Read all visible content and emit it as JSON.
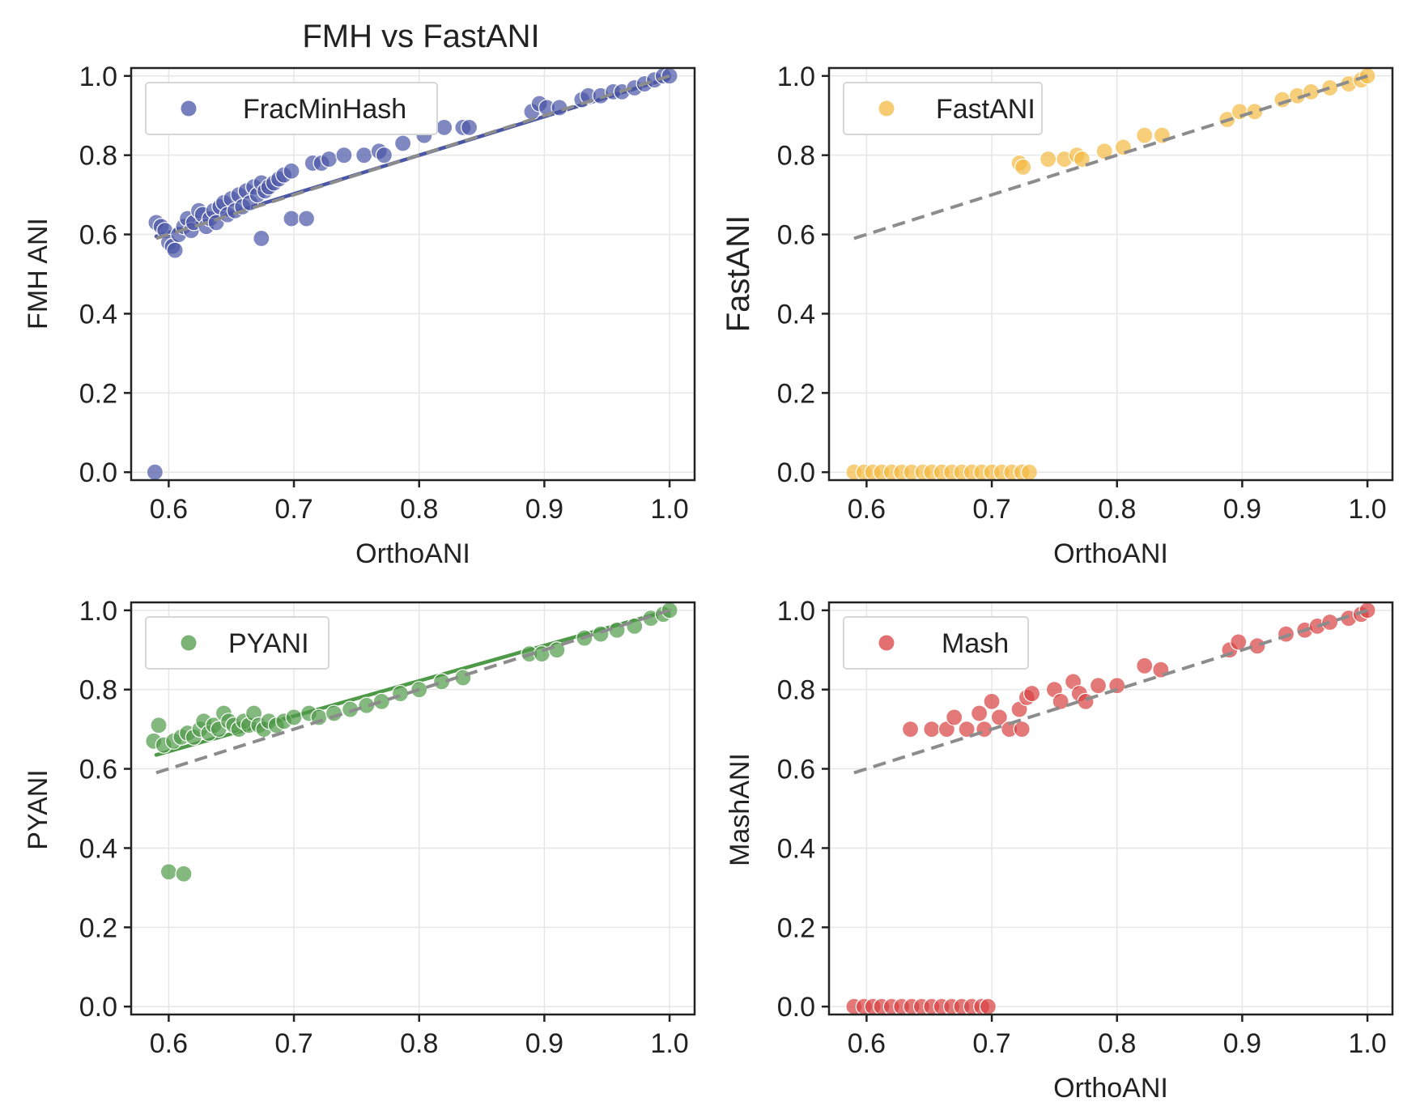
{
  "figure": {
    "title": "FMH vs FastANI",
    "colors": {
      "frac": "#4a56a6",
      "fast": "#f4b942",
      "pyani": "#4f9a48",
      "mash": "#d94040",
      "identity": "#8c8c8c",
      "grid": "#e6e6e6",
      "axes": "#222222"
    }
  },
  "chart_data": [
    {
      "type": "scatter",
      "title": "FMH vs FastANI",
      "xlabel": "OrthoANI",
      "ylabel": "FMH ANI",
      "xlim": [
        0.57,
        1.02
      ],
      "ylim": [
        -0.02,
        1.02
      ],
      "xticks": [
        "0.6",
        "0.7",
        "0.8",
        "0.9",
        "1.0"
      ],
      "yticks": [
        "0.0",
        "0.2",
        "0.4",
        "0.6",
        "0.8",
        "1.0"
      ],
      "grid": true,
      "legend": "top-left",
      "series": [
        {
          "name": "FracMinHash",
          "color": "#4a56a6",
          "points": [
            [
              0.589,
              0.0
            ],
            [
              0.59,
              0.63
            ],
            [
              0.594,
              0.62
            ],
            [
              0.597,
              0.61
            ],
            [
              0.6,
              0.58
            ],
            [
              0.603,
              0.57
            ],
            [
              0.605,
              0.56
            ],
            [
              0.608,
              0.6
            ],
            [
              0.612,
              0.62
            ],
            [
              0.615,
              0.64
            ],
            [
              0.618,
              0.61
            ],
            [
              0.62,
              0.63
            ],
            [
              0.624,
              0.66
            ],
            [
              0.627,
              0.65
            ],
            [
              0.63,
              0.62
            ],
            [
              0.633,
              0.64
            ],
            [
              0.636,
              0.66
            ],
            [
              0.638,
              0.63
            ],
            [
              0.641,
              0.67
            ],
            [
              0.644,
              0.68
            ],
            [
              0.647,
              0.65
            ],
            [
              0.65,
              0.69
            ],
            [
              0.653,
              0.66
            ],
            [
              0.656,
              0.7
            ],
            [
              0.659,
              0.67
            ],
            [
              0.662,
              0.71
            ],
            [
              0.665,
              0.68
            ],
            [
              0.668,
              0.72
            ],
            [
              0.671,
              0.7
            ],
            [
              0.674,
              0.73
            ],
            [
              0.677,
              0.71
            ],
            [
              0.68,
              0.72
            ],
            [
              0.684,
              0.73
            ],
            [
              0.688,
              0.74
            ],
            [
              0.674,
              0.59
            ],
            [
              0.698,
              0.64
            ],
            [
              0.71,
              0.64
            ],
            [
              0.692,
              0.75
            ],
            [
              0.698,
              0.76
            ],
            [
              0.715,
              0.78
            ],
            [
              0.722,
              0.78
            ],
            [
              0.728,
              0.79
            ],
            [
              0.74,
              0.8
            ],
            [
              0.756,
              0.8
            ],
            [
              0.768,
              0.81
            ],
            [
              0.772,
              0.8
            ],
            [
              0.787,
              0.83
            ],
            [
              0.804,
              0.85
            ],
            [
              0.82,
              0.87
            ],
            [
              0.835,
              0.87
            ],
            [
              0.84,
              0.87
            ],
            [
              0.89,
              0.91
            ],
            [
              0.896,
              0.93
            ],
            [
              0.902,
              0.92
            ],
            [
              0.912,
              0.92
            ],
            [
              0.93,
              0.94
            ],
            [
              0.935,
              0.95
            ],
            [
              0.945,
              0.95
            ],
            [
              0.955,
              0.96
            ],
            [
              0.962,
              0.96
            ],
            [
              0.972,
              0.97
            ],
            [
              0.98,
              0.98
            ],
            [
              0.988,
              0.99
            ],
            [
              0.995,
              1.0
            ],
            [
              1.0,
              1.0
            ]
          ]
        }
      ],
      "fit_line": {
        "name": "FracMinHash fit",
        "color": "#4a56a6",
        "x": [
          0.59,
          1.0
        ],
        "y": [
          0.595,
          0.995
        ]
      },
      "identity_line": {
        "x": [
          0.59,
          1.0
        ],
        "y": [
          0.59,
          1.0
        ]
      }
    },
    {
      "type": "scatter",
      "title": "",
      "xlabel": "OrthoANI",
      "ylabel": "FastANI",
      "xlim": [
        0.57,
        1.02
      ],
      "ylim": [
        -0.02,
        1.02
      ],
      "xticks": [
        "0.6",
        "0.7",
        "0.8",
        "0.9",
        "1.0"
      ],
      "yticks": [
        "0.0",
        "0.2",
        "0.4",
        "0.6",
        "0.8",
        "1.0"
      ],
      "grid": true,
      "legend": "top-left",
      "series": [
        {
          "name": "FastANI",
          "color": "#f4b942",
          "points": [
            [
              0.59,
              0.0
            ],
            [
              0.598,
              0.0
            ],
            [
              0.605,
              0.0
            ],
            [
              0.612,
              0.0
            ],
            [
              0.62,
              0.0
            ],
            [
              0.628,
              0.0
            ],
            [
              0.636,
              0.0
            ],
            [
              0.645,
              0.0
            ],
            [
              0.652,
              0.0
            ],
            [
              0.66,
              0.0
            ],
            [
              0.668,
              0.0
            ],
            [
              0.676,
              0.0
            ],
            [
              0.684,
              0.0
            ],
            [
              0.692,
              0.0
            ],
            [
              0.7,
              0.0
            ],
            [
              0.708,
              0.0
            ],
            [
              0.716,
              0.0
            ],
            [
              0.724,
              0.0
            ],
            [
              0.73,
              0.0
            ],
            [
              0.722,
              0.78
            ],
            [
              0.725,
              0.77
            ],
            [
              0.745,
              0.79
            ],
            [
              0.758,
              0.79
            ],
            [
              0.768,
              0.8
            ],
            [
              0.772,
              0.79
            ],
            [
              0.79,
              0.81
            ],
            [
              0.805,
              0.82
            ],
            [
              0.822,
              0.85
            ],
            [
              0.836,
              0.85
            ],
            [
              0.888,
              0.89
            ],
            [
              0.898,
              0.91
            ],
            [
              0.91,
              0.91
            ],
            [
              0.932,
              0.94
            ],
            [
              0.944,
              0.95
            ],
            [
              0.955,
              0.96
            ],
            [
              0.97,
              0.97
            ],
            [
              0.985,
              0.98
            ],
            [
              0.995,
              0.99
            ],
            [
              1.0,
              1.0
            ]
          ]
        }
      ],
      "identity_line": {
        "x": [
          0.59,
          1.0
        ],
        "y": [
          0.59,
          1.0
        ]
      }
    },
    {
      "type": "scatter",
      "title": "",
      "xlabel": "",
      "ylabel": "PYANI",
      "xlim": [
        0.57,
        1.02
      ],
      "ylim": [
        -0.02,
        1.02
      ],
      "xticks": [
        "0.6",
        "0.7",
        "0.8",
        "0.9",
        "1.0"
      ],
      "yticks": [
        "0.0",
        "0.2",
        "0.4",
        "0.6",
        "0.8",
        "1.0"
      ],
      "grid": true,
      "legend": "top-left",
      "series": [
        {
          "name": "PYANI",
          "color": "#4f9a48",
          "points": [
            [
              0.588,
              0.67
            ],
            [
              0.592,
              0.71
            ],
            [
              0.6,
              0.34
            ],
            [
              0.612,
              0.335
            ],
            [
              0.596,
              0.66
            ],
            [
              0.604,
              0.67
            ],
            [
              0.61,
              0.68
            ],
            [
              0.615,
              0.69
            ],
            [
              0.62,
              0.68
            ],
            [
              0.625,
              0.7
            ],
            [
              0.628,
              0.72
            ],
            [
              0.632,
              0.69
            ],
            [
              0.636,
              0.71
            ],
            [
              0.64,
              0.7
            ],
            [
              0.644,
              0.74
            ],
            [
              0.648,
              0.72
            ],
            [
              0.652,
              0.71
            ],
            [
              0.656,
              0.7
            ],
            [
              0.66,
              0.72
            ],
            [
              0.664,
              0.71
            ],
            [
              0.668,
              0.74
            ],
            [
              0.672,
              0.71
            ],
            [
              0.676,
              0.7
            ],
            [
              0.68,
              0.72
            ],
            [
              0.686,
              0.71
            ],
            [
              0.692,
              0.72
            ],
            [
              0.7,
              0.73
            ],
            [
              0.712,
              0.74
            ],
            [
              0.72,
              0.73
            ],
            [
              0.732,
              0.74
            ],
            [
              0.745,
              0.75
            ],
            [
              0.758,
              0.76
            ],
            [
              0.77,
              0.77
            ],
            [
              0.785,
              0.79
            ],
            [
              0.8,
              0.8
            ],
            [
              0.818,
              0.82
            ],
            [
              0.835,
              0.83
            ],
            [
              0.888,
              0.89
            ],
            [
              0.898,
              0.89
            ],
            [
              0.91,
              0.9
            ],
            [
              0.932,
              0.93
            ],
            [
              0.945,
              0.94
            ],
            [
              0.958,
              0.95
            ],
            [
              0.972,
              0.96
            ],
            [
              0.985,
              0.98
            ],
            [
              0.995,
              0.99
            ],
            [
              1.0,
              1.0
            ]
          ]
        }
      ],
      "fit_line": {
        "name": "PYANI fit",
        "color": "#4f9a48",
        "x": [
          0.59,
          1.0
        ],
        "y": [
          0.635,
          1.0
        ]
      },
      "identity_line": {
        "x": [
          0.59,
          1.0
        ],
        "y": [
          0.59,
          1.0
        ]
      }
    },
    {
      "type": "scatter",
      "title": "",
      "xlabel": "OrthoANI",
      "ylabel": "MashANI",
      "xlim": [
        0.57,
        1.02
      ],
      "ylim": [
        -0.02,
        1.02
      ],
      "xticks": [
        "0.6",
        "0.7",
        "0.8",
        "0.9",
        "1.0"
      ],
      "yticks": [
        "0.0",
        "0.2",
        "0.4",
        "0.6",
        "0.8",
        "1.0"
      ],
      "grid": true,
      "legend": "top-left",
      "series": [
        {
          "name": "Mash",
          "color": "#d94040",
          "points": [
            [
              0.59,
              0.0
            ],
            [
              0.598,
              0.0
            ],
            [
              0.605,
              0.0
            ],
            [
              0.612,
              0.0
            ],
            [
              0.62,
              0.0
            ],
            [
              0.628,
              0.0
            ],
            [
              0.636,
              0.0
            ],
            [
              0.644,
              0.0
            ],
            [
              0.652,
              0.0
            ],
            [
              0.66,
              0.0
            ],
            [
              0.668,
              0.0
            ],
            [
              0.676,
              0.0
            ],
            [
              0.684,
              0.0
            ],
            [
              0.692,
              0.0
            ],
            [
              0.697,
              0.0
            ],
            [
              0.635,
              0.7
            ],
            [
              0.652,
              0.7
            ],
            [
              0.664,
              0.7
            ],
            [
              0.67,
              0.73
            ],
            [
              0.68,
              0.7
            ],
            [
              0.69,
              0.74
            ],
            [
              0.694,
              0.7
            ],
            [
              0.7,
              0.77
            ],
            [
              0.706,
              0.73
            ],
            [
              0.714,
              0.7
            ],
            [
              0.722,
              0.75
            ],
            [
              0.728,
              0.78
            ],
            [
              0.732,
              0.79
            ],
            [
              0.724,
              0.7
            ],
            [
              0.75,
              0.8
            ],
            [
              0.755,
              0.77
            ],
            [
              0.765,
              0.82
            ],
            [
              0.77,
              0.79
            ],
            [
              0.775,
              0.77
            ],
            [
              0.785,
              0.81
            ],
            [
              0.8,
              0.81
            ],
            [
              0.822,
              0.86
            ],
            [
              0.835,
              0.85
            ],
            [
              0.89,
              0.9
            ],
            [
              0.897,
              0.92
            ],
            [
              0.912,
              0.91
            ],
            [
              0.935,
              0.94
            ],
            [
              0.95,
              0.95
            ],
            [
              0.96,
              0.96
            ],
            [
              0.97,
              0.97
            ],
            [
              0.985,
              0.98
            ],
            [
              0.995,
              0.99
            ],
            [
              1.0,
              1.0
            ]
          ]
        }
      ],
      "identity_line": {
        "x": [
          0.59,
          1.0
        ],
        "y": [
          0.59,
          1.0
        ]
      }
    }
  ]
}
